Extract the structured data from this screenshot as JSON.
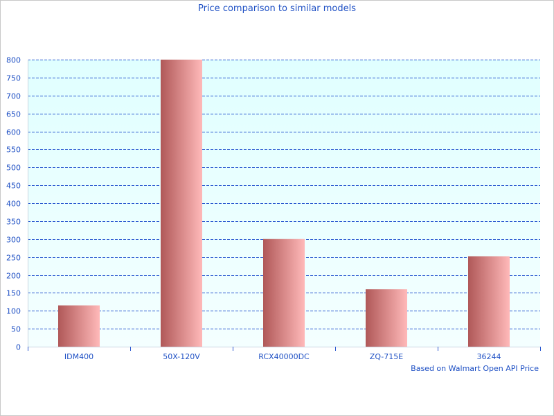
{
  "chart_data": {
    "type": "bar",
    "title": "Price comparison to similar models",
    "footnote": "Based on Walmart Open API Price",
    "categories": [
      "IDM400",
      "50X-120V",
      "RCX40000DC",
      "ZQ-715E",
      "36244"
    ],
    "values": [
      115,
      800,
      300,
      160,
      252
    ],
    "ylim": [
      0,
      800
    ],
    "yticks": [
      0,
      50,
      100,
      150,
      200,
      250,
      300,
      350,
      400,
      450,
      500,
      550,
      600,
      650,
      700,
      750,
      800
    ],
    "grid": true,
    "colors": {
      "bar_dark": "#b05858",
      "bar_light": "#ffb9b9",
      "plot_bg": "#e0ffff",
      "grid": "#2a58d0",
      "text": "#1d4fc4"
    }
  }
}
